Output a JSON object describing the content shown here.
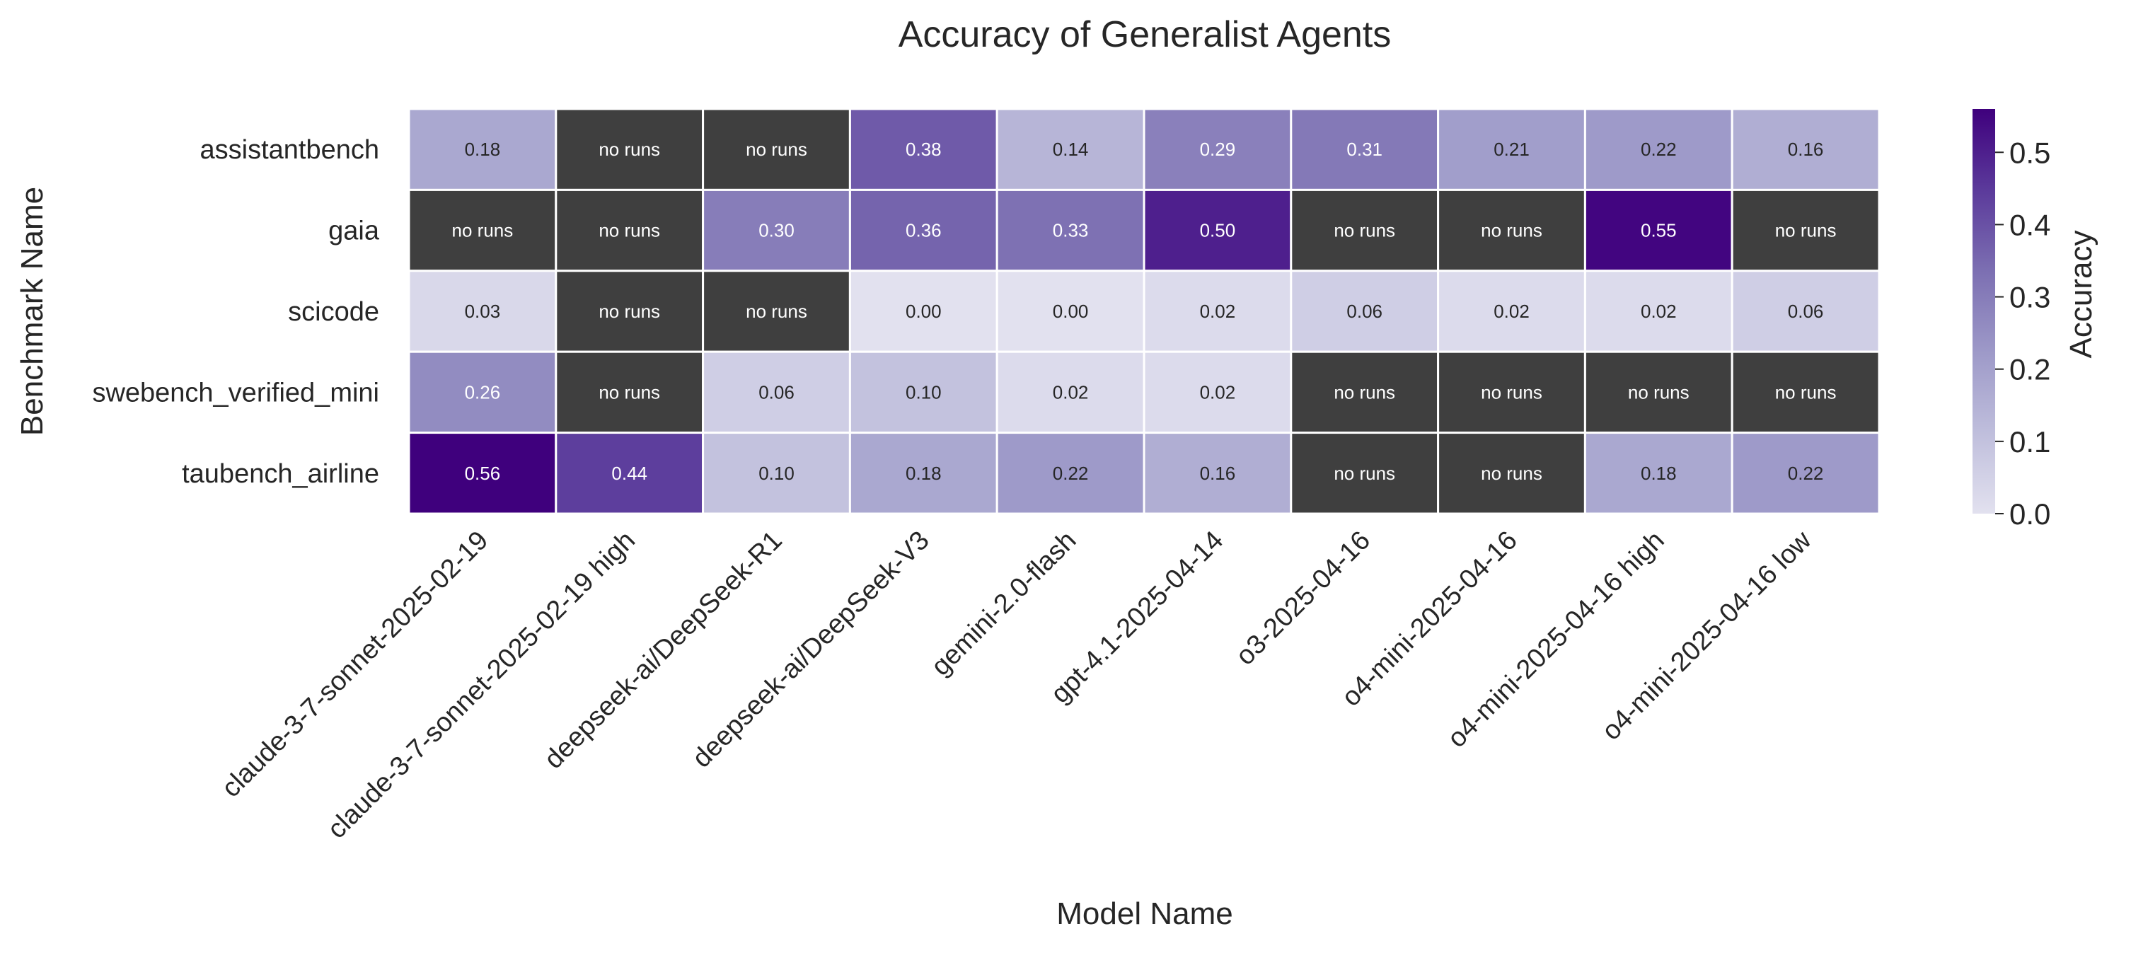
{
  "chart_data": {
    "type": "heatmap",
    "title": "Accuracy of Generalist Agents",
    "xlabel": "Model Name",
    "ylabel": "Benchmark Name",
    "colorbar_label": "Accuracy",
    "x": [
      "claude-3-7-sonnet-2025-02-19",
      "claude-3-7-sonnet-2025-02-19 high",
      "deepseek-ai/DeepSeek-R1",
      "deepseek-ai/DeepSeek-V3",
      "gemini-2.0-flash",
      "gpt-4.1-2025-04-14",
      "o3-2025-04-16",
      "o4-mini-2025-04-16",
      "o4-mini-2025-04-16 high",
      "o4-mini-2025-04-16 low"
    ],
    "y": [
      "assistantbench",
      "gaia",
      "scicode",
      "swebench_verified_mini",
      "taubench_airline"
    ],
    "values": [
      [
        0.18,
        null,
        null,
        0.38,
        0.14,
        0.29,
        0.31,
        0.21,
        0.22,
        0.16
      ],
      [
        null,
        null,
        0.3,
        0.36,
        0.33,
        0.5,
        null,
        null,
        0.55,
        null
      ],
      [
        0.03,
        null,
        null,
        0.0,
        0.0,
        0.02,
        0.06,
        0.02,
        0.02,
        0.06
      ],
      [
        0.26,
        null,
        0.06,
        0.1,
        0.02,
        0.02,
        null,
        null,
        null,
        null
      ],
      [
        0.56,
        0.44,
        0.1,
        0.18,
        0.22,
        0.16,
        null,
        null,
        0.18,
        0.22
      ]
    ],
    "missing_label": "no runs",
    "missing_color": "#3f3f3f",
    "value_range": [
      0.0,
      0.56
    ],
    "colorbar_ticks": [
      "0.0",
      "0.1",
      "0.2",
      "0.3",
      "0.4",
      "0.5"
    ],
    "colormap": "Purples",
    "colormap_colors": [
      "#e2e1ef",
      "#bfbedc",
      "#9d99c8",
      "#7c6fb2",
      "#5b3a9b",
      "#3f007d"
    ]
  }
}
